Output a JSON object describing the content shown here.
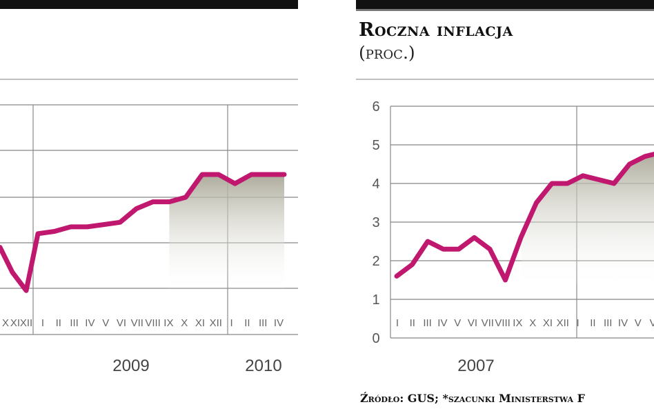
{
  "left_panel": {
    "chart_data": {
      "type": "area",
      "title": "",
      "months_visible_partial_2008": [
        "X",
        "XI",
        "XII"
      ],
      "months": [
        "I",
        "II",
        "III",
        "IV",
        "V",
        "VI",
        "VII",
        "VIII",
        "IX",
        "X",
        "XI",
        "XII",
        "I",
        "II",
        "III",
        "IV"
      ],
      "year_labels": [
        "2009",
        "2010"
      ],
      "values": [
        3.4,
        3.5,
        3.7,
        3.7,
        3.8,
        3.9,
        4.5,
        4.8,
        4.8,
        5.0,
        6.0,
        6.0,
        5.6,
        6.0,
        6.0,
        6.0
      ],
      "partial_values_start": [
        2.8,
        1.7,
        0.9
      ],
      "line_color": "#c0186e",
      "fill_color": "#b8b6a8",
      "grid": true
    }
  },
  "right_panel": {
    "title": "Roczna inflacja",
    "subtitle": "(proc.)",
    "source": "Źródło: GUS; *szacunki Ministerstwa F",
    "chart_data": {
      "type": "area",
      "title": "Roczna inflacja",
      "ylabel": "(proc.)",
      "ylim": [
        0,
        6
      ],
      "yticks": [
        "0",
        "1",
        "2",
        "3",
        "4",
        "5",
        "6"
      ],
      "months": [
        "I",
        "II",
        "III",
        "IV",
        "V",
        "VI",
        "VII",
        "VIII",
        "IX",
        "X",
        "XI",
        "XII",
        "I",
        "II",
        "III",
        "IV",
        "V",
        "V"
      ],
      "year_labels": [
        "2007"
      ],
      "values": [
        1.6,
        1.9,
        2.5,
        2.3,
        2.3,
        2.6,
        2.3,
        1.5,
        2.6,
        3.5,
        4.0,
        4.0,
        4.2,
        4.1,
        4.0,
        4.5,
        4.7,
        4.8
      ],
      "line_color": "#c0186e",
      "fill_color": "#b8b6a8",
      "grid": true
    }
  }
}
